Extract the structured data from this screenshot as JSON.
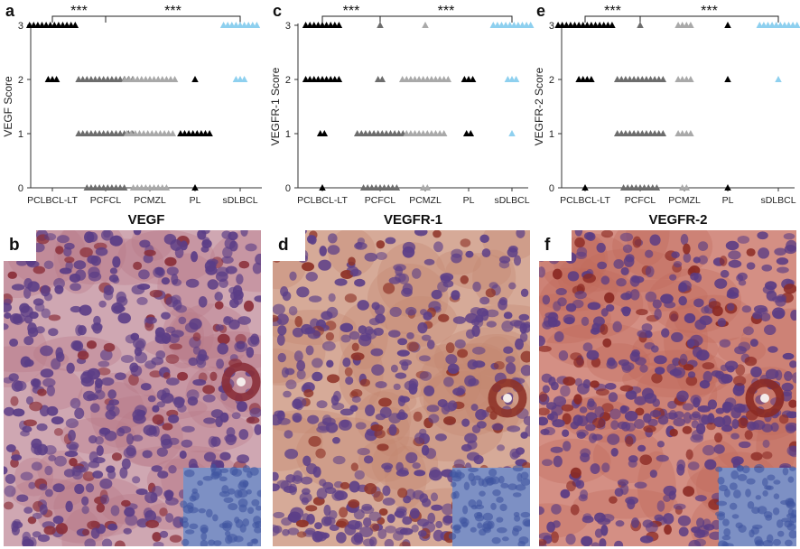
{
  "colors": {
    "PCLBCL-LT": "#000000",
    "PCFCL": "#6d6d6d",
    "PCMZL": "#a9a9a9",
    "PL": "#000000",
    "sDLBCL": "#8ed0ef",
    "stain_brown": "#9a3c3c",
    "stain_nuclei": "#6a4a8a",
    "inset_blue": "#6a82c0"
  },
  "panels": [
    {
      "letter": "b",
      "title": "VEGF"
    },
    {
      "letter": "d",
      "title": "VEGFR-1"
    },
    {
      "letter": "f",
      "title": "VEGFR-2"
    }
  ],
  "chart_data": [
    {
      "type": "scatter",
      "letter": "a",
      "ylabel": "VEGF Score",
      "categories": [
        "PCLBCL-LT",
        "PCFCL",
        "PCMZL",
        "PL",
        "sDLBCL"
      ],
      "ylim": [
        0,
        3
      ],
      "yticks": [
        "0",
        "1",
        "2",
        "3"
      ],
      "significance": [
        {
          "from": "PCLBCL-LT",
          "to": "PCFCL",
          "label": "***"
        },
        {
          "from": "PCFCL",
          "to": "sDLBCL",
          "label": "***"
        }
      ],
      "series": [
        {
          "category": "PCLBCL-LT",
          "counts": {
            "0": 0,
            "1": 0,
            "2": 3,
            "3": 12
          }
        },
        {
          "category": "PCFCL",
          "counts": {
            "0": 10,
            "1": 14,
            "2": 14,
            "3": 0
          }
        },
        {
          "category": "PCMZL",
          "counts": {
            "0": 9,
            "1": 12,
            "2": 13,
            "3": 0
          }
        },
        {
          "category": "PL",
          "counts": {
            "0": 1,
            "1": 8,
            "2": 1,
            "3": 0
          }
        },
        {
          "category": "sDLBCL",
          "counts": {
            "0": 0,
            "1": 0,
            "2": 3,
            "3": 9
          }
        }
      ]
    },
    {
      "type": "scatter",
      "letter": "c",
      "ylabel": "VEGFR-1 Score",
      "categories": [
        "PCLBCL-LT",
        "PCFCL",
        "PCMZL",
        "PL",
        "sDLBCL"
      ],
      "ylim": [
        0,
        3
      ],
      "yticks": [
        "0",
        "1",
        "2",
        "3"
      ],
      "significance": [
        {
          "from": "PCLBCL-LT",
          "to": "PCFCL",
          "label": "***"
        },
        {
          "from": "PCFCL",
          "to": "sDLBCL",
          "label": "***"
        }
      ],
      "series": [
        {
          "category": "PCLBCL-LT",
          "counts": {
            "0": 1,
            "1": 2,
            "2": 9,
            "3": 9
          }
        },
        {
          "category": "PCFCL",
          "counts": {
            "0": 9,
            "1": 12,
            "2": 2,
            "3": 1
          }
        },
        {
          "category": "PCMZL",
          "counts": {
            "0": 2,
            "1": 10,
            "2": 12,
            "3": 1
          }
        },
        {
          "category": "PL",
          "counts": {
            "0": 0,
            "1": 2,
            "2": 3,
            "3": 0
          }
        },
        {
          "category": "sDLBCL",
          "counts": {
            "0": 0,
            "1": 1,
            "2": 3,
            "3": 10
          }
        }
      ]
    },
    {
      "type": "scatter",
      "letter": "e",
      "ylabel": "VEGFR-2 Score",
      "categories": [
        "PCLBCL-LT",
        "PCFCL",
        "PCMZL",
        "PL",
        "sDLBCL"
      ],
      "ylim": [
        0,
        3
      ],
      "yticks": [
        "0",
        "1",
        "2",
        "3"
      ],
      "significance": [
        {
          "from": "PCLBCL-LT",
          "to": "PCFCL",
          "label": "***"
        },
        {
          "from": "PCFCL",
          "to": "sDLBCL",
          "label": "***"
        }
      ],
      "series": [
        {
          "category": "PCLBCL-LT",
          "counts": {
            "0": 1,
            "1": 0,
            "2": 4,
            "3": 14
          }
        },
        {
          "category": "PCFCL",
          "counts": {
            "0": 9,
            "1": 12,
            "2": 12,
            "3": 1
          }
        },
        {
          "category": "PCMZL",
          "counts": {
            "0": 2,
            "1": 4,
            "2": 4,
            "3": 4
          }
        },
        {
          "category": "PL",
          "counts": {
            "0": 1,
            "1": 0,
            "2": 1,
            "3": 1
          }
        },
        {
          "category": "sDLBCL",
          "counts": {
            "0": 0,
            "1": 0,
            "2": 1,
            "3": 10
          }
        }
      ]
    }
  ]
}
